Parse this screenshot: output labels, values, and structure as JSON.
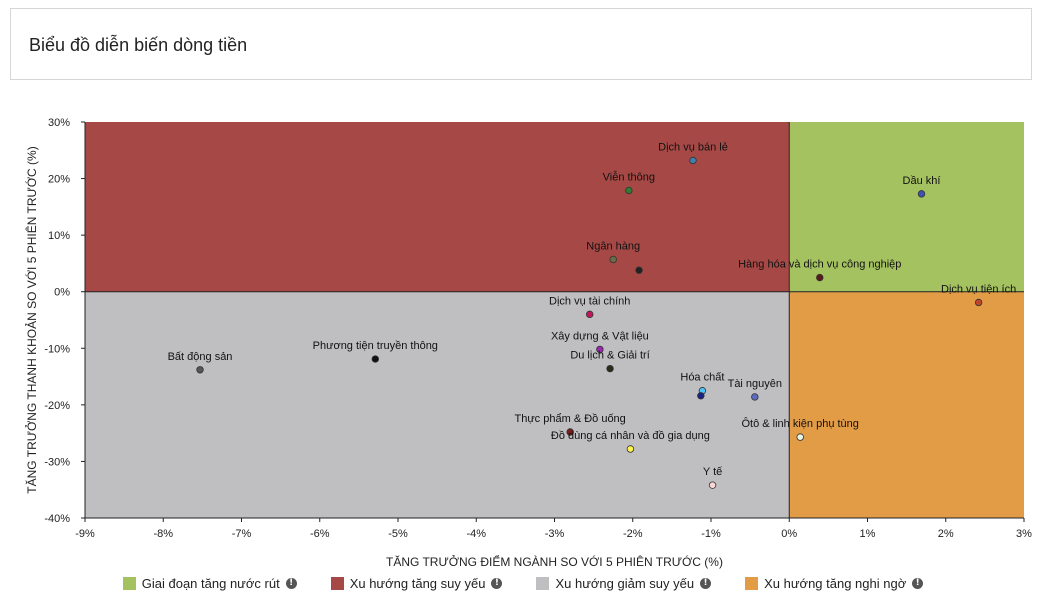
{
  "header": {
    "title": "Biểu đồ diễn biến dòng tiền"
  },
  "chart_data": {
    "type": "scatter",
    "xlabel": "TĂNG TRƯỞNG ĐIỂM NGÀNH SO VỚI 5 PHIÊN TRƯỚC (%)",
    "ylabel": "TĂNG TRƯỞNG THANH KHOẢN SO VỚI 5 PHIÊN TRƯỚC (%)",
    "xlim": [
      -9,
      3
    ],
    "ylim": [
      -40,
      30
    ],
    "x_ticks": [
      -9,
      -8,
      -7,
      -6,
      -5,
      -4,
      -3,
      -2,
      -1,
      0,
      1,
      2,
      3
    ],
    "y_ticks": [
      30,
      20,
      10,
      0,
      -10,
      -20,
      -30,
      -40
    ],
    "x_tick_labels": [
      "-9%",
      "-8%",
      "-7%",
      "-6%",
      "-5%",
      "-4%",
      "-3%",
      "-2%",
      "-1%",
      "0%",
      "1%",
      "2%",
      "3%"
    ],
    "y_tick_labels": [
      "30%",
      "20%",
      "10%",
      "0%",
      "-10%",
      "-20%",
      "-30%",
      "-40%"
    ],
    "quadrant_colors": {
      "top_right": "#a5c261",
      "top_left": "#a64946",
      "bottom_left": "#bfbfc2",
      "bottom_right": "#e39c46"
    },
    "points": [
      {
        "label": "Dịch vụ bán lẻ",
        "x": -1.23,
        "y": 23.2,
        "color": "#3f7fb0"
      },
      {
        "label": "Viễn thông",
        "x": -2.05,
        "y": 17.9,
        "color": "#2e7d32"
      },
      {
        "label": "Dầu khí",
        "x": 1.69,
        "y": 17.3,
        "color": "#3f51b5"
      },
      {
        "label": "Ngân hàng",
        "x": -2.25,
        "y": 5.7,
        "color": "#6b6b48"
      },
      {
        "label": "",
        "x": -1.92,
        "y": 3.8,
        "color": "#222222"
      },
      {
        "label": "Hàng hóa và dịch vụ công nghiệp",
        "x": 0.39,
        "y": 2.5,
        "color": "#5b1a1a"
      },
      {
        "label": "Dịch vụ tiện ích",
        "x": 2.42,
        "y": -1.9,
        "color": "#c0442a"
      },
      {
        "label": "Dịch vụ tài chính",
        "x": -2.55,
        "y": -4.0,
        "color": "#c2185b"
      },
      {
        "label": "Xây dựng & Vật liệu",
        "x": -2.42,
        "y": -10.2,
        "color": "#9c27b0"
      },
      {
        "label": "Bất động sản",
        "x": -7.53,
        "y": -13.8,
        "color": "#555555"
      },
      {
        "label": "Phương tiện truyền thông",
        "x": -5.29,
        "y": -11.9,
        "color": "#111111"
      },
      {
        "label": "Du lịch & Giải trí",
        "x": -2.29,
        "y": -13.6,
        "color": "#2b2b1a"
      },
      {
        "label": "Hóa chất",
        "x": -1.11,
        "y": -17.5,
        "color": "#4fc3f7"
      },
      {
        "label": "",
        "x": -1.13,
        "y": -18.4,
        "color": "#1a237e"
      },
      {
        "label": "Tài nguyên",
        "x": -0.44,
        "y": -18.6,
        "color": "#5c6bc0"
      },
      {
        "label": "Thực phẩm & Đồ uống",
        "x": -2.8,
        "y": -24.8,
        "color": "#7a1d1d"
      },
      {
        "label": "Ôtô & linh kiện phụ tùng",
        "x": 0.14,
        "y": -25.7,
        "color": "#e8f5e9"
      },
      {
        "label": "Đồ dùng cá nhân và đồ gia dụng",
        "x": -2.03,
        "y": -27.8,
        "color": "#fff44f"
      },
      {
        "label": "Y tế",
        "x": -0.98,
        "y": -34.2,
        "color": "#f8d7d7"
      }
    ],
    "legend": [
      {
        "label": "Giai đoạn tăng nước rút",
        "color": "#a5c261"
      },
      {
        "label": "Xu hướng tăng suy yếu",
        "color": "#a64946"
      },
      {
        "label": "Xu hướng giảm suy yếu",
        "color": "#bfbfc2"
      },
      {
        "label": "Xu hướng tăng nghi ngờ",
        "color": "#e39c46"
      }
    ],
    "legend_position": "bottom"
  }
}
